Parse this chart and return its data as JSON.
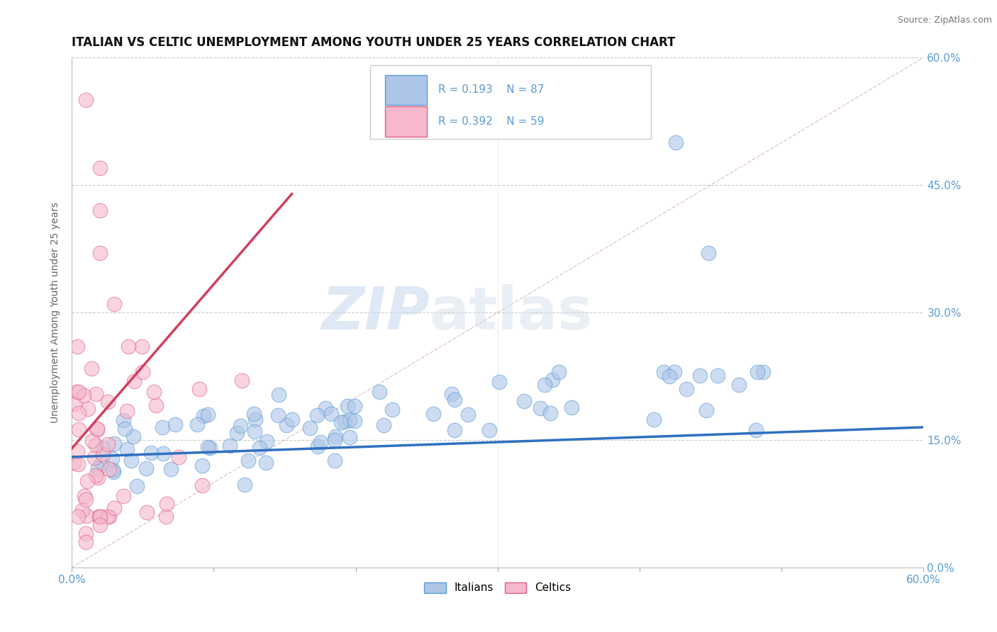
{
  "title": "ITALIAN VS CELTIC UNEMPLOYMENT AMONG YOUTH UNDER 25 YEARS CORRELATION CHART",
  "source": "Source: ZipAtlas.com",
  "ylabel": "Unemployment Among Youth under 25 years",
  "xlim": [
    0.0,
    0.6
  ],
  "ylim": [
    0.0,
    0.6
  ],
  "xtick_positions": [
    0.0,
    0.1,
    0.2,
    0.3,
    0.4,
    0.5,
    0.6
  ],
  "xtick_labels_ends": {
    "0.0": "0.0%",
    "0.6": "60.0%"
  },
  "ytick_positions": [
    0.0,
    0.15,
    0.3,
    0.45,
    0.6
  ],
  "ytick_labels_right": [
    "0.0%",
    "15.0%",
    "30.0%",
    "45.0%",
    "60.0%"
  ],
  "watermark_zip": "ZIP",
  "watermark_atlas": "atlas",
  "italian_fill": "#adc6e8",
  "italian_edge": "#5b9bd5",
  "celtic_fill": "#f5b8cc",
  "celtic_edge": "#e06080",
  "italian_line_color": "#3070c0",
  "celtic_line_color": "#d04060",
  "diagonal_color": "#d8b0b8",
  "R_italian": 0.193,
  "N_italian": 87,
  "R_celtic": 0.392,
  "N_celtic": 59,
  "background_color": "#ffffff",
  "grid_color": "#cccccc",
  "title_fontsize": 12,
  "axis_color": "#5b9bd5",
  "label_color": "#666666"
}
